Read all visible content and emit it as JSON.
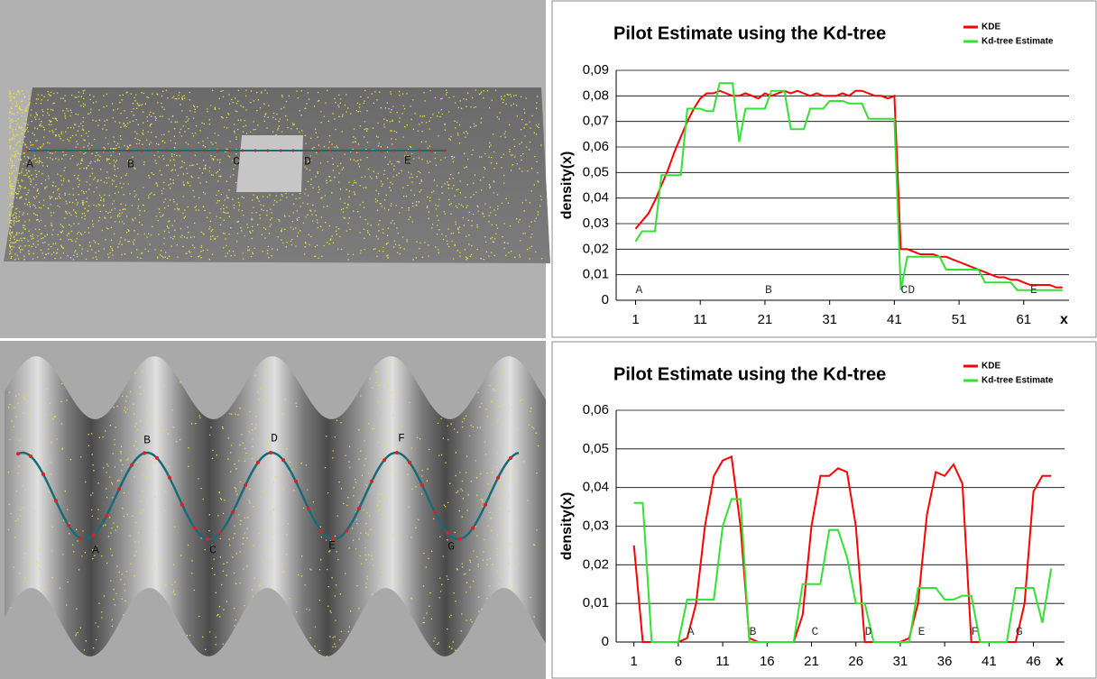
{
  "scenes": [
    {
      "labels": [
        "A",
        "B",
        "C",
        "D",
        "E"
      ]
    },
    {
      "labels": [
        "A",
        "B",
        "C",
        "D",
        "E",
        "F",
        "G"
      ]
    }
  ],
  "chart_data": [
    {
      "type": "line",
      "title": "Pilot Estimate using the Kd-tree",
      "xlabel": "x",
      "ylabel": "density(x)",
      "x": [
        1,
        2,
        3,
        4,
        5,
        6,
        7,
        8,
        9,
        10,
        11,
        12,
        13,
        14,
        15,
        16,
        17,
        18,
        19,
        20,
        21,
        22,
        23,
        24,
        25,
        26,
        27,
        28,
        29,
        30,
        31,
        32,
        33,
        34,
        35,
        36,
        37,
        38,
        39,
        40,
        41,
        42,
        43,
        44,
        45,
        46,
        47,
        48,
        49,
        50,
        51,
        52,
        53,
        54,
        55,
        56,
        57,
        58,
        59,
        60,
        61,
        62,
        63,
        64,
        65,
        66,
        67
      ],
      "series": [
        {
          "name": "KDE",
          "color": "#ff0000",
          "values": [
            0.028,
            0.031,
            0.034,
            0.039,
            0.045,
            0.051,
            0.058,
            0.064,
            0.07,
            0.075,
            0.079,
            0.081,
            0.081,
            0.082,
            0.081,
            0.08,
            0.08,
            0.081,
            0.08,
            0.079,
            0.081,
            0.08,
            0.081,
            0.082,
            0.081,
            0.082,
            0.081,
            0.08,
            0.081,
            0.08,
            0.08,
            0.08,
            0.081,
            0.08,
            0.082,
            0.082,
            0.081,
            0.08,
            0.08,
            0.079,
            0.08,
            0.02,
            0.02,
            0.019,
            0.018,
            0.018,
            0.018,
            0.017,
            0.017,
            0.016,
            0.015,
            0.014,
            0.013,
            0.012,
            0.011,
            0.01,
            0.009,
            0.009,
            0.008,
            0.008,
            0.007,
            0.006,
            0.006,
            0.006,
            0.006,
            0.005,
            0.005
          ]
        },
        {
          "name": "Kd-tree Estimate",
          "color": "#33e033",
          "values": [
            0.023,
            0.027,
            0.027,
            0.027,
            0.049,
            0.049,
            0.049,
            0.049,
            0.075,
            0.075,
            0.075,
            0.074,
            0.074,
            0.085,
            0.085,
            0.085,
            0.062,
            0.075,
            0.075,
            0.075,
            0.075,
            0.082,
            0.082,
            0.082,
            0.067,
            0.067,
            0.067,
            0.075,
            0.075,
            0.075,
            0.078,
            0.078,
            0.078,
            0.077,
            0.077,
            0.077,
            0.071,
            0.071,
            0.071,
            0.071,
            0.071,
            0.004,
            0.017,
            0.017,
            0.017,
            0.017,
            0.017,
            0.017,
            0.012,
            0.012,
            0.012,
            0.012,
            0.012,
            0.012,
            0.007,
            0.007,
            0.007,
            0.007,
            0.007,
            0.004,
            0.004,
            0.004,
            0.004,
            0.004,
            0.004,
            0.004,
            0.004
          ]
        }
      ],
      "xlim": [
        -2,
        68
      ],
      "xticks": [
        1,
        11,
        21,
        31,
        41,
        51,
        61
      ],
      "ylim": [
        0,
        0.09
      ],
      "yticks": [
        0,
        {
          "value": 0.01,
          "label": "0,01"
        },
        {
          "value": 0.02,
          "label": "0,02"
        },
        {
          "value": 0.03,
          "label": "0,03"
        },
        {
          "value": 0.04,
          "label": "0,04"
        },
        {
          "value": 0.05,
          "label": "0,05"
        },
        {
          "value": 0.06,
          "label": "0,06"
        },
        {
          "value": 0.07,
          "label": "0,07"
        },
        {
          "value": 0.08,
          "label": "0,08"
        },
        {
          "value": 0.09,
          "label": "0,09"
        }
      ],
      "grid": true,
      "legend": "upper right",
      "annotations": [
        {
          "text": "A",
          "x": 1,
          "y": 0.0015
        },
        {
          "text": "B",
          "x": 21,
          "y": 0.0015
        },
        {
          "text": "CD",
          "x": 42,
          "y": 0.0015
        },
        {
          "text": "E",
          "x": 62,
          "y": 0.0015
        }
      ]
    },
    {
      "type": "line",
      "title": "Pilot Estimate using the Kd-tree",
      "xlabel": "x",
      "ylabel": "density(x)",
      "x": [
        1,
        2,
        3,
        4,
        5,
        6,
        7,
        8,
        9,
        10,
        11,
        12,
        13,
        14,
        15,
        16,
        17,
        18,
        19,
        20,
        21,
        22,
        23,
        24,
        25,
        26,
        27,
        28,
        29,
        30,
        31,
        32,
        33,
        34,
        35,
        36,
        37,
        38,
        39,
        40,
        41,
        42,
        43,
        44,
        45,
        46,
        47,
        48
      ],
      "series": [
        {
          "name": "KDE",
          "color": "#ff0000",
          "values": [
            0.025,
            0,
            0,
            0,
            0,
            0,
            0.001,
            0.01,
            0.03,
            0.043,
            0.047,
            0.048,
            0.03,
            0.001,
            0,
            0,
            0,
            0,
            0,
            0.007,
            0.03,
            0.043,
            0.043,
            0.045,
            0.044,
            0.03,
            0,
            0,
            0,
            0,
            0,
            0.001,
            0.01,
            0.033,
            0.044,
            0.043,
            0.046,
            0.041,
            0,
            0,
            0,
            0,
            0,
            0,
            0.01,
            0.039,
            0.043,
            0.043
          ]
        },
        {
          "name": "Kd-tree Estimate",
          "color": "#33e033",
          "values": [
            0.036,
            0.036,
            0,
            0,
            0,
            0,
            0.011,
            0.011,
            0.011,
            0.011,
            0.03,
            0.037,
            0.037,
            0,
            0,
            0,
            0,
            0,
            0,
            0.015,
            0.015,
            0.015,
            0.029,
            0.029,
            0.022,
            0.01,
            0.01,
            0,
            0,
            0,
            0,
            0,
            0.014,
            0.014,
            0.014,
            0.011,
            0.011,
            0.012,
            0.012,
            0,
            0,
            0,
            0,
            0.014,
            0.014,
            0.014,
            0.005,
            0.019
          ]
        }
      ],
      "xlim": [
        -1,
        49.5
      ],
      "xticks": [
        1,
        6,
        11,
        16,
        21,
        26,
        31,
        36,
        41,
        46
      ],
      "ylim": [
        0,
        0.06
      ],
      "yticks": [
        0,
        {
          "value": 0.01,
          "label": "0,01"
        },
        {
          "value": 0.02,
          "label": "0,02"
        },
        {
          "value": 0.03,
          "label": "0,03"
        },
        {
          "value": 0.04,
          "label": "0,04"
        },
        {
          "value": 0.05,
          "label": "0,05"
        },
        {
          "value": 0.06,
          "label": "0,06"
        }
      ],
      "grid": true,
      "legend": "upper right",
      "annotations": [
        {
          "text": "A",
          "x": 7,
          "y": 0.001
        },
        {
          "text": "B",
          "x": 14,
          "y": 0.001
        },
        {
          "text": "C",
          "x": 21,
          "y": 0.001
        },
        {
          "text": "D",
          "x": 27,
          "y": 0.001
        },
        {
          "text": "E",
          "x": 33,
          "y": 0.001
        },
        {
          "text": "F",
          "x": 39,
          "y": 0.001
        },
        {
          "text": "G",
          "x": 44,
          "y": 0.001
        }
      ]
    }
  ]
}
